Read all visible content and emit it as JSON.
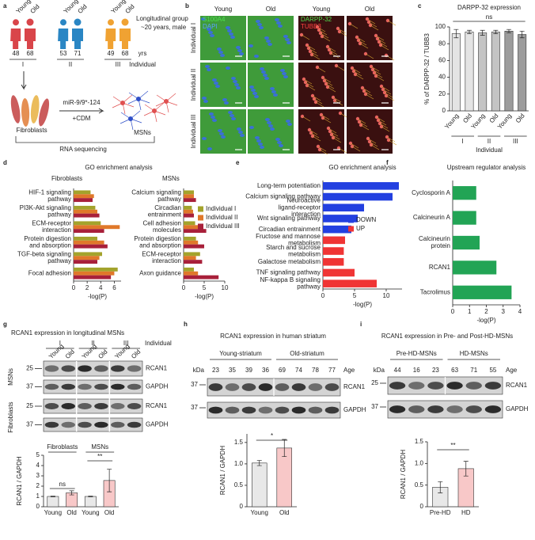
{
  "panels": {
    "a": {
      "label": "a",
      "lanes": [
        "Young",
        "Old",
        "Young",
        "Old",
        "Young",
        "Old"
      ],
      "ages": [
        48,
        68,
        53,
        71,
        49,
        68
      ],
      "age_unit": "yrs",
      "individuals": [
        "I",
        "II",
        "III"
      ],
      "individual_label": "Individual",
      "group_title": "Longitudinal group",
      "group_note": "~20 years, male",
      "source": "Fibroblasts",
      "treatment": "miR-9/9*-124",
      "medium": "+CDM",
      "product": "MSNs",
      "method": "RNA sequencing"
    },
    "b": {
      "label": "b",
      "columns": [
        "Young",
        "Old",
        "Young",
        "Old"
      ],
      "rows": [
        "Individual I",
        "Individual II",
        "Individual III"
      ],
      "stains_left": [
        "S100A4",
        "DAPI"
      ],
      "stains_right": [
        "DARPP-32",
        "TUBB3"
      ]
    },
    "c": {
      "label": "c"
    },
    "d": {
      "label": "d",
      "title": "GO enrichment analysis"
    },
    "e": {
      "label": "e"
    },
    "f": {
      "label": "f"
    },
    "g": {
      "label": "g",
      "title": "RCAN1 expression in longitudinal MSNs",
      "individuals": [
        "I",
        "II",
        "III"
      ],
      "individual_label": "Individual",
      "lanes": [
        "Young",
        "Old",
        "Young",
        "Old",
        "Young",
        "Old"
      ],
      "markers": [
        25,
        37,
        25,
        37
      ],
      "proteins": [
        "RCAN1",
        "GAPDH",
        "RCAN1",
        "GAPDH"
      ],
      "cell_types": [
        "MSNs",
        "Fibroblasts"
      ]
    },
    "h": {
      "label": "h",
      "title": "RCAN1 expression in human striatum",
      "groups": [
        "Young-striatum",
        "Old-striatum"
      ],
      "kda": "kDa",
      "ages": [
        23,
        35,
        39,
        36,
        69,
        74,
        78,
        77
      ],
      "age_label": "Age",
      "markers": [
        37,
        37
      ],
      "proteins": [
        "RCAN1",
        "GAPDH"
      ]
    },
    "i": {
      "label": "i",
      "title": "RCAN1 expression in Pre- and Post-HD-MSNs",
      "groups": [
        "Pre-HD-MSNs",
        "HD-MSNs"
      ],
      "kda": "kDa",
      "ages": [
        44,
        16,
        23,
        63,
        71,
        55
      ],
      "age_label": "Age",
      "markers": [
        25,
        37
      ],
      "proteins": [
        "RCAN1",
        "GAPDH"
      ]
    }
  },
  "chart_data": [
    {
      "type": "bar",
      "orientation": "vertical",
      "title": "DARPP-32 expression",
      "annotations": [
        "ns"
      ],
      "ylabel": "% of DARPP-32 / TUBB3",
      "categories": [
        "Young",
        "Old",
        "Young",
        "Old",
        "Young",
        "Old"
      ],
      "groups": [
        "I",
        "II",
        "III"
      ],
      "group_label": "Individual",
      "values": [
        92,
        94,
        93,
        94,
        95,
        91
      ],
      "errors": [
        5,
        2,
        3,
        2,
        2,
        4
      ],
      "colors": [
        "#e4e4e4",
        "#e4e4e4",
        "#c4c4c4",
        "#c4c4c4",
        "#9c9c9c",
        "#9c9c9c"
      ],
      "ylim": [
        0,
        100
      ],
      "yticks": [
        0,
        20,
        40,
        60,
        80,
        100
      ]
    },
    {
      "type": "bar",
      "orientation": "horizontal",
      "title": "Fibroblasts",
      "xlabel": "-log(P)",
      "categories": [
        "HIF-1 signaling pathway",
        "PI3K-Akt signaling pathway",
        "ECM-receptor interaction",
        "Protein digestion and absorption",
        "TGF-beta signaling pathway",
        "Focal adhesion"
      ],
      "series": [
        {
          "color": "#a3a32c",
          "values": [
            2.5,
            3.2,
            4.0,
            3.5,
            4.2,
            6.5
          ]
        },
        {
          "color": "#e0782a",
          "values": [
            3.0,
            3.5,
            6.8,
            4.5,
            3.8,
            6.0
          ]
        },
        {
          "color": "#a8203a",
          "values": [
            2.8,
            3.8,
            4.5,
            5.0,
            3.5,
            5.5
          ]
        }
      ],
      "xlim": [
        0,
        7
      ],
      "xticks": [
        0,
        2,
        4,
        6
      ]
    },
    {
      "type": "bar",
      "orientation": "horizontal",
      "title": "MSNs",
      "xlabel": "-log(P)",
      "legend": "upper right",
      "categories": [
        "Calcium signaling pathway",
        "Circadian entrainment",
        "Cell adhesion molecules",
        "Protein digestion and absorption",
        "ECM-receptor interaction",
        "Axon guidance"
      ],
      "series": [
        {
          "name": "Individual I",
          "color": "#a3a32c",
          "values": [
            2.5,
            2.0,
            2.8,
            3.0,
            4.0,
            2.5
          ]
        },
        {
          "name": "Individual II",
          "color": "#e0782a",
          "values": [
            2.5,
            2.3,
            3.5,
            3.5,
            3.0,
            3.5
          ]
        },
        {
          "name": "Individual III",
          "color": "#a8203a",
          "values": [
            3.0,
            2.5,
            5.5,
            5.0,
            4.5,
            8.5
          ]
        }
      ],
      "xlim": [
        0,
        10
      ],
      "xticks": [
        0,
        5,
        10
      ]
    },
    {
      "type": "bar",
      "orientation": "horizontal",
      "title": "GO enrichment analysis",
      "xlabel": "-log(P)",
      "legend": "center right",
      "categories": [
        "Long-term potentiation",
        "Calcium signaling pathway",
        "Neuroactive ligand-receptor interaction",
        "Wnt signaling pathway",
        "Circadian entrainment",
        "Fructose and mannose metabolism",
        "Starch and sucrose metabolism",
        "Galactose metabolism",
        "TNF signaling pathway",
        "NF-kappa B signaling pathway"
      ],
      "series": [
        {
          "name": "DOWN",
          "color": "#2340e0",
          "values": [
            12,
            11,
            6.5,
            5.5,
            4.5,
            null,
            null,
            null,
            null,
            null
          ]
        },
        {
          "name": "UP",
          "color": "#f03535",
          "values": [
            null,
            null,
            null,
            null,
            null,
            3.5,
            3.3,
            3.3,
            5,
            8.5
          ]
        }
      ],
      "xlim": [
        0,
        12.5
      ],
      "xticks": [
        0,
        5,
        10
      ]
    },
    {
      "type": "bar",
      "orientation": "horizontal",
      "title": "Upstream regulator analysis",
      "xlabel": "-log(P)",
      "categories": [
        "Cyclosporin A",
        "Calcineurin A",
        "Calcineurin protein",
        "RCAN1",
        "Tacrolimus"
      ],
      "values": [
        1.4,
        1.4,
        1.6,
        2.6,
        3.5
      ],
      "color": "#22a455",
      "xlim": [
        0,
        4
      ],
      "xticks": [
        0,
        1,
        2,
        3,
        4
      ]
    },
    {
      "type": "bar",
      "orientation": "vertical",
      "ylabel": "RCAN1 / GAPDH",
      "categories": [
        "Young",
        "Old",
        "Young",
        "Old"
      ],
      "groups": [
        "Fibroblasts",
        "MSNs"
      ],
      "annotations": [
        "ns",
        "**"
      ],
      "values": [
        1,
        1.35,
        1,
        2.55
      ],
      "errors": [
        0.03,
        0.2,
        0.03,
        1.1
      ],
      "colors": [
        "#e8e8e8",
        "#f8c8c8",
        "#e8e8e8",
        "#f8c8c8"
      ],
      "ylim": [
        0,
        5
      ],
      "yticks": [
        0,
        1,
        2,
        3,
        4,
        5
      ]
    },
    {
      "type": "bar",
      "orientation": "vertical",
      "ylabel": "RCAN1 / GAPDH",
      "categories": [
        "Young",
        "Old"
      ],
      "annotations": [
        "*"
      ],
      "values": [
        1.02,
        1.37
      ],
      "errors": [
        0.06,
        0.2
      ],
      "colors": [
        "#e8e8e8",
        "#f8c8c8"
      ],
      "ylim": [
        0,
        1.7
      ],
      "yticks": [
        0,
        0.5,
        {
          "value": 1,
          "label": "1.0"
        },
        1.5
      ]
    },
    {
      "type": "bar",
      "orientation": "vertical",
      "ylabel": "RCAN1 / GAPDH",
      "categories": [
        "Pre-HD",
        "HD"
      ],
      "annotations": [
        "**"
      ],
      "values": [
        0.45,
        0.88
      ],
      "errors": [
        0.13,
        0.17
      ],
      "colors": [
        "#e8e8e8",
        "#f8c8c8"
      ],
      "ylim": [
        0,
        1.5
      ],
      "yticks": [
        0,
        0.5,
        {
          "value": 1,
          "label": "1.0"
        },
        1.5
      ]
    }
  ]
}
